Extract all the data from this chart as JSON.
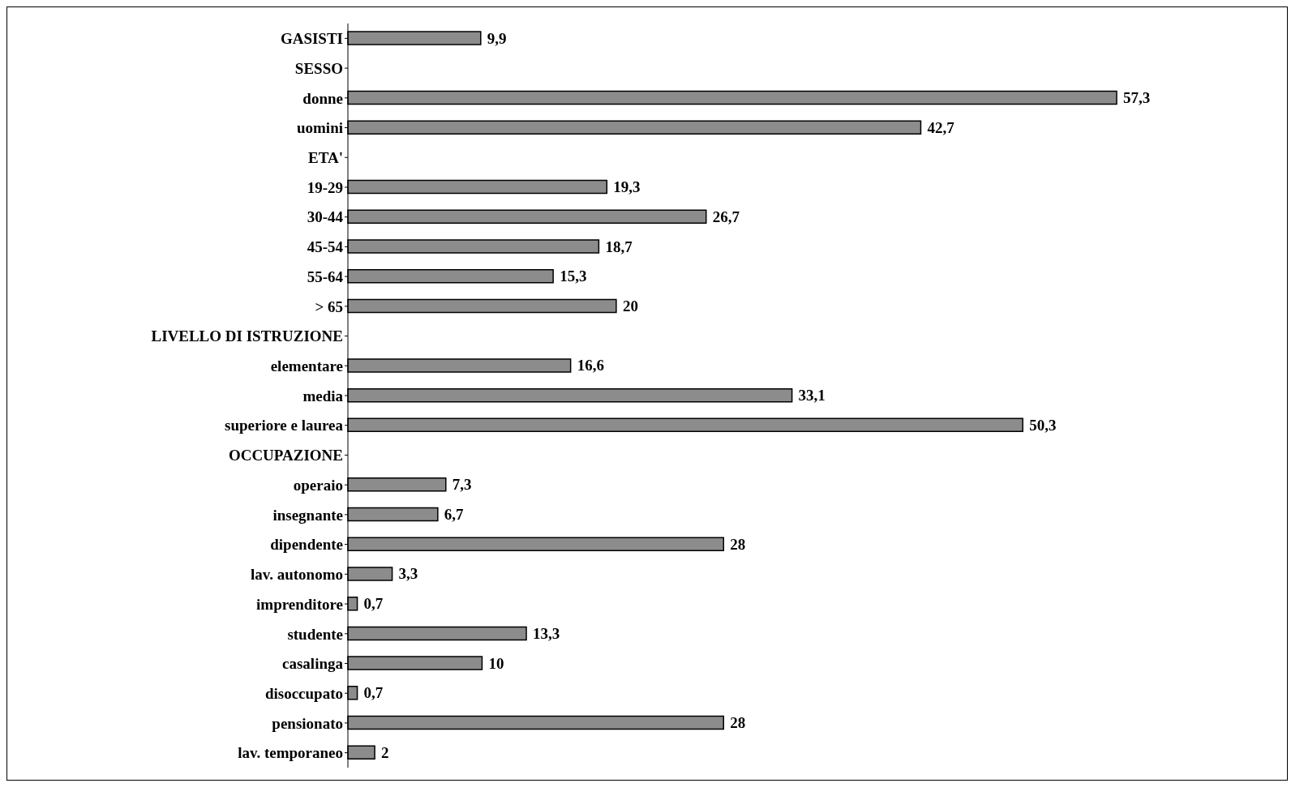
{
  "chart_data": {
    "type": "bar",
    "orientation": "horizontal",
    "categories": [
      "GASISTI",
      "SESSO",
      "donne",
      "uomini",
      "ETA'",
      "19-29",
      "30-44",
      "45-54",
      "55-64",
      "> 65",
      "LIVELLO DI ISTRUZIONE",
      "elementare",
      "media",
      "superiore e laurea",
      "OCCUPAZIONE",
      "operaio",
      "insegnante",
      "dipendente",
      "lav. autonomo",
      "imprenditore",
      "studente",
      "casalinga",
      "disoccupato",
      "pensionato",
      "lav. temporaneo"
    ],
    "values": [
      9.9,
      null,
      57.3,
      42.7,
      null,
      19.3,
      26.7,
      18.7,
      15.3,
      20,
      null,
      16.6,
      33.1,
      50.3,
      null,
      7.3,
      6.7,
      28,
      3.3,
      0.7,
      13.3,
      10,
      0.7,
      28,
      2
    ],
    "value_labels": [
      "9,9",
      null,
      "57,3",
      "42,7",
      null,
      "19,3",
      "26,7",
      "18,7",
      "15,3",
      "20",
      null,
      "16,6",
      "33,1",
      "50,3",
      null,
      "7,3",
      "6,7",
      "28",
      "3,3",
      "0,7",
      "13,3",
      "10",
      "0,7",
      "28",
      "2"
    ],
    "color": "#8c8c8c",
    "tick_labels": "y"
  }
}
